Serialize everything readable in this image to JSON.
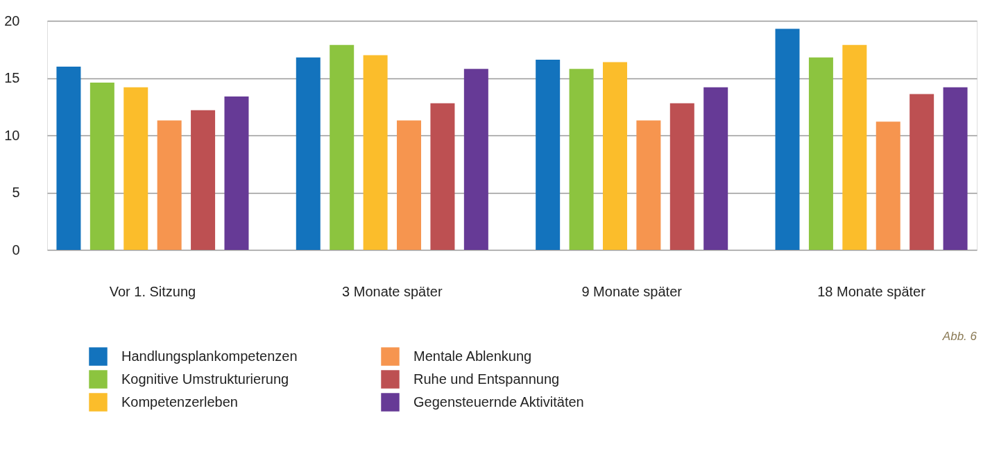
{
  "chart_data": {
    "type": "bar",
    "categories": [
      "Vor 1. Sitzung",
      "3 Monate später",
      "9 Monate später",
      "18 Monate später"
    ],
    "series": [
      {
        "name": "Handlungsplankompetenzen",
        "color": "#1373bd",
        "values": [
          16.0,
          16.8,
          16.6,
          19.3
        ]
      },
      {
        "name": "Kognitive Umstrukturierung",
        "color": "#8cc43f",
        "values": [
          14.6,
          17.9,
          15.8,
          16.8
        ]
      },
      {
        "name": "Kompetenzerleben",
        "color": "#fbbd2b",
        "values": [
          14.2,
          17.0,
          16.4,
          17.9
        ]
      },
      {
        "name": "Mentale Ablenkung",
        "color": "#f6954f",
        "values": [
          11.3,
          11.3,
          11.3,
          11.2
        ]
      },
      {
        "name": "Ruhe und Entspannung",
        "color": "#bd5052",
        "values": [
          12.2,
          12.8,
          12.8,
          13.6
        ]
      },
      {
        "name": "Gegensteuernde Aktivitäten",
        "color": "#663a96",
        "values": [
          13.4,
          15.8,
          14.2,
          14.2
        ]
      }
    ],
    "ylim": [
      0,
      20
    ],
    "yticks": [
      0,
      5,
      10,
      15,
      20
    ],
    "grid": "y",
    "legend": "bottom left",
    "annotations": [
      "Abb. 6"
    ]
  }
}
